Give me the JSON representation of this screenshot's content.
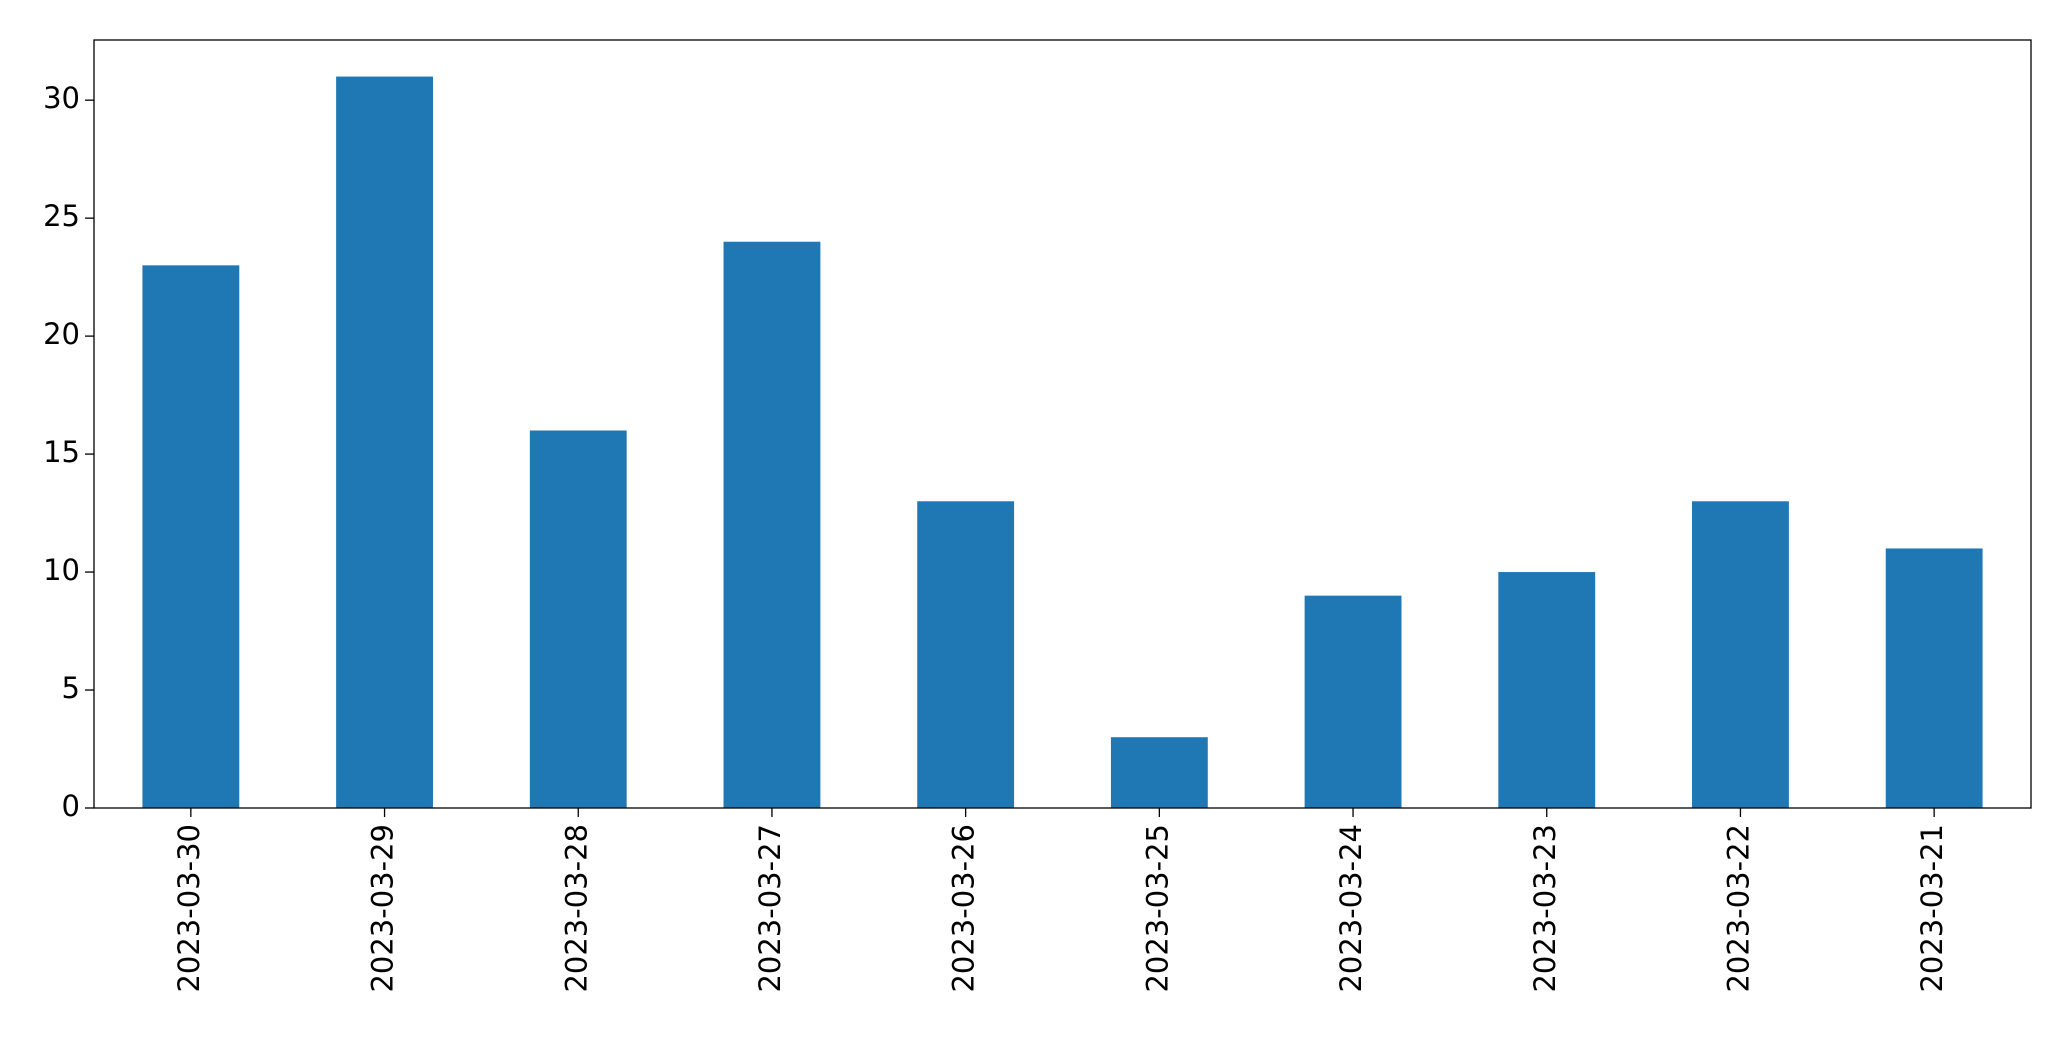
{
  "chart_data": {
    "type": "bar",
    "categories": [
      "2023-03-30",
      "2023-03-29",
      "2023-03-28",
      "2023-03-27",
      "2023-03-26",
      "2023-03-25",
      "2023-03-24",
      "2023-03-23",
      "2023-03-22",
      "2023-03-21"
    ],
    "values": [
      23,
      31,
      16,
      24,
      13,
      3,
      9,
      10,
      13,
      11
    ],
    "color": "#1f77b4",
    "ylim": [
      0,
      32.55
    ],
    "yticks": [
      0,
      5,
      10,
      15,
      20,
      25,
      30
    ],
    "grid": false
  }
}
